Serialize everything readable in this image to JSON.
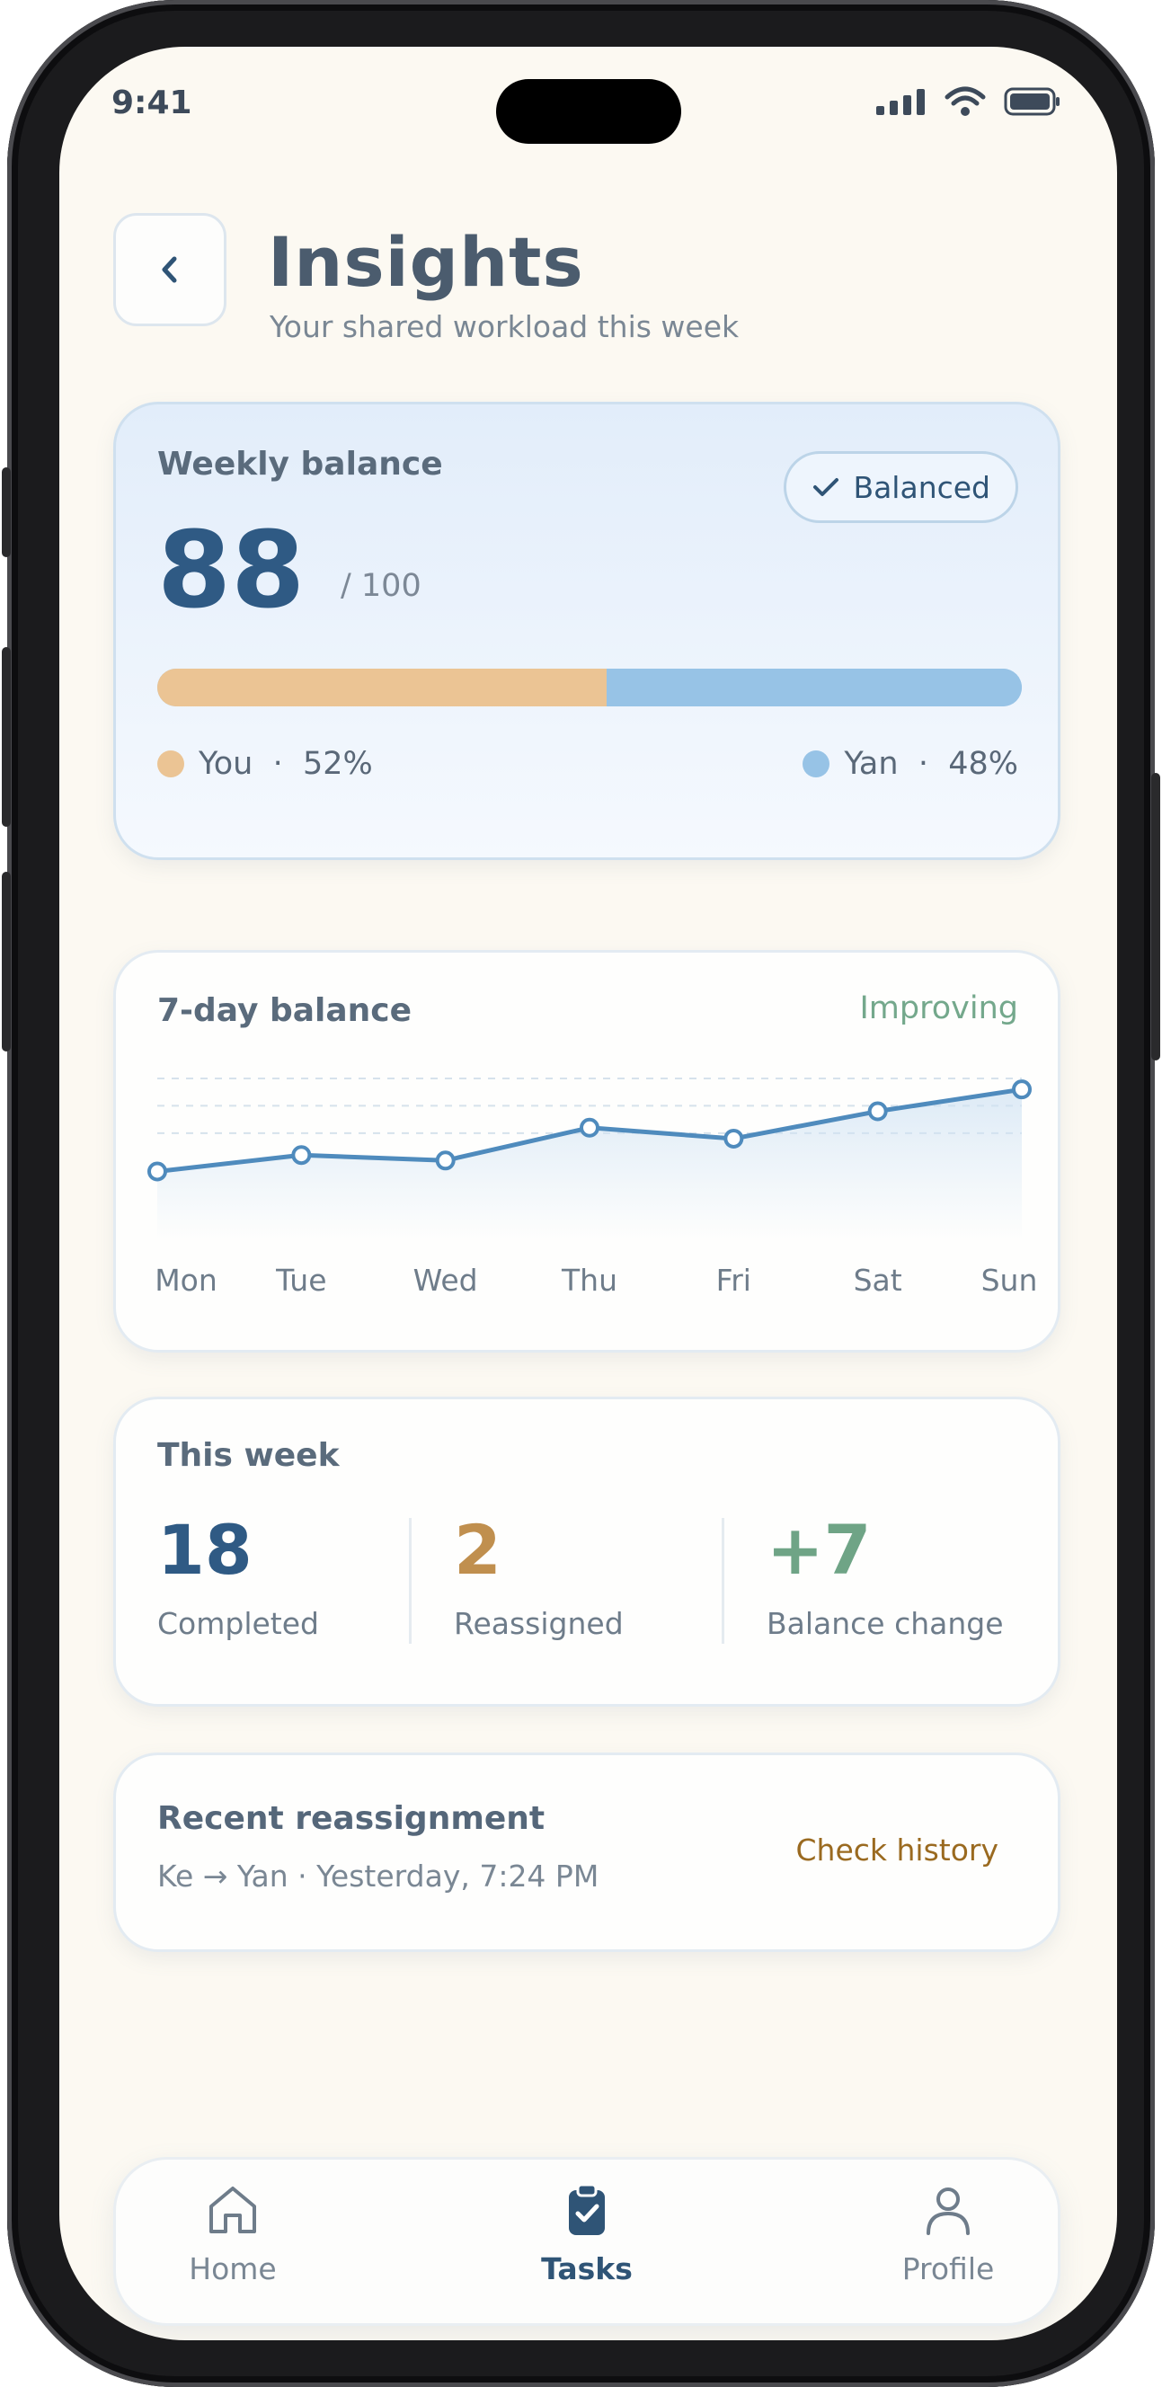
{
  "status": {
    "time": "9:41"
  },
  "header": {
    "title": "Insights",
    "subtitle": "Your shared workload this week"
  },
  "balance_card": {
    "label": "Weekly balance",
    "badge": "Balanced",
    "score": "88",
    "out_of": "/ 100",
    "split": {
      "you": 52,
      "yan": 48
    },
    "legend": {
      "you": "You  ·  52%",
      "yan": "Yan  ·  48%"
    },
    "colors": {
      "you": "#ebc494",
      "yan": "#97c3e6"
    }
  },
  "trend_card": {
    "label": "7-day balance",
    "trend": "Improving"
  },
  "chart_data": {
    "type": "line",
    "categories": [
      "Mon",
      "Tue",
      "Wed",
      "Thu",
      "Fri",
      "Sat",
      "Sun"
    ],
    "values": [
      78,
      81,
      80,
      86,
      84,
      89,
      93
    ],
    "ylim": [
      72,
      95
    ],
    "gridlines": [
      85,
      90,
      95
    ],
    "grid": true,
    "color": "#4f8bbd"
  },
  "week_card": {
    "label": "This week",
    "stats": [
      {
        "value": "18",
        "caption": "Completed",
        "color": "#2f5a84"
      },
      {
        "value": "2",
        "caption": "Reassigned",
        "color": "#c08f4e"
      },
      {
        "value": "+7",
        "caption": "Balance change",
        "color": "#6fa486"
      }
    ]
  },
  "recent_card": {
    "title": "Recent reassignment",
    "detail": "Ke → Yan · Yesterday, 7:24 PM",
    "action": "Check history"
  },
  "tabbar": {
    "items": [
      {
        "label": "Home",
        "icon": "home-icon"
      },
      {
        "label": "Tasks",
        "icon": "clipboard-check-icon",
        "active": true
      },
      {
        "label": "Profile",
        "icon": "person-icon"
      }
    ]
  }
}
